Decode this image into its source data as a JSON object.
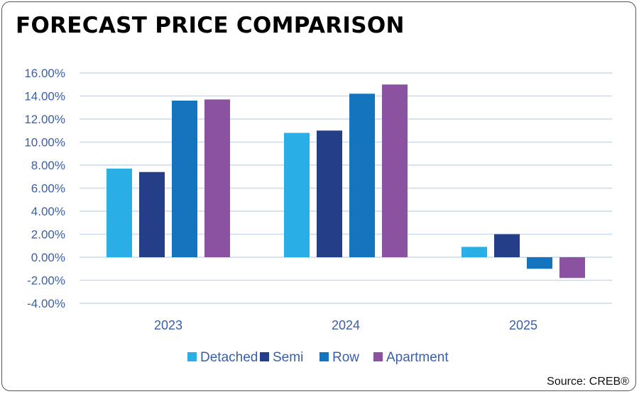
{
  "title": "FORECAST PRICE COMPARISON",
  "source": "Source: CREB®",
  "colors": {
    "grid": "#c9daea",
    "axis_text": "#3a5fa6",
    "legend_text": "#3a5fa6"
  },
  "chart_data": {
    "type": "bar",
    "title": "FORECAST PRICE COMPARISON",
    "categories": [
      "2023",
      "2024",
      "2025"
    ],
    "series": [
      {
        "name": "Detached",
        "color": "#2aaee6",
        "values": [
          7.7,
          10.8,
          0.9
        ]
      },
      {
        "name": "Semi",
        "color": "#243f87",
        "values": [
          7.4,
          11.0,
          2.0
        ]
      },
      {
        "name": "Row",
        "color": "#1474bd",
        "values": [
          13.6,
          14.2,
          -1.0
        ]
      },
      {
        "name": "Apartment",
        "color": "#8a52a0",
        "values": [
          13.7,
          15.0,
          -1.8
        ]
      }
    ],
    "ylim": [
      -4,
      16
    ],
    "yticks": [
      -4,
      -2,
      0,
      2,
      4,
      6,
      8,
      10,
      12,
      14,
      16
    ],
    "ytick_labels": [
      "-4.00%",
      "-2.00%",
      "0.00%",
      "2.00%",
      "4.00%",
      "6.00%",
      "8.00%",
      "10.00%",
      "12.00%",
      "14.00%",
      "16.00%"
    ],
    "grid": true,
    "legend_position": "bottom-center"
  }
}
